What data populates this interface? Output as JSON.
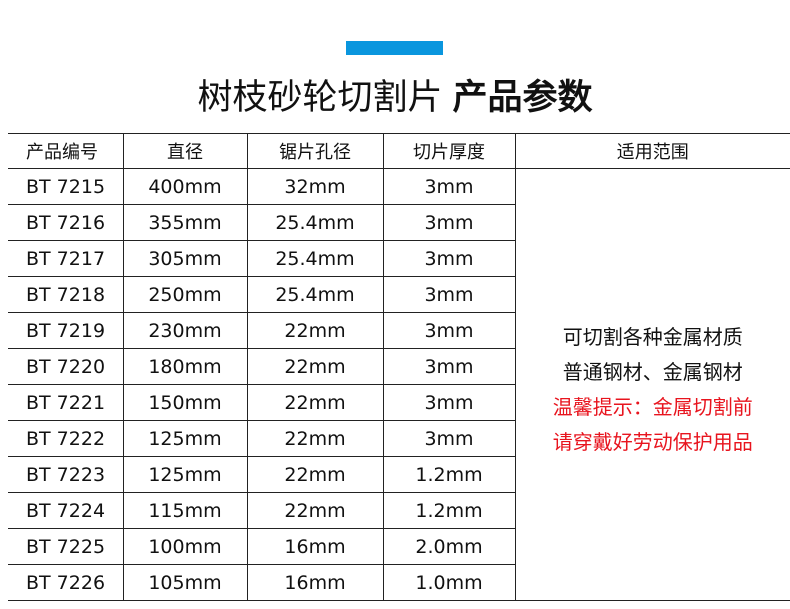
{
  "accent_color": "#0a96de",
  "warning_color": "#e8141e",
  "title": {
    "main": "树枝砂轮切割片",
    "bold": "产品参数"
  },
  "table": {
    "headers": [
      "产品编号",
      "直径",
      "锯片孔径",
      "切片厚度",
      "适用范围"
    ],
    "rows": [
      [
        "BT 7215",
        "400mm",
        "32mm",
        "3mm"
      ],
      [
        "BT 7216",
        "355mm",
        "25.4mm",
        "3mm"
      ],
      [
        "BT 7217",
        "305mm",
        "25.4mm",
        "3mm"
      ],
      [
        "BT 7218",
        "250mm",
        "25.4mm",
        "3mm"
      ],
      [
        "BT 7219",
        "230mm",
        "22mm",
        "3mm"
      ],
      [
        "BT 7220",
        "180mm",
        "22mm",
        "3mm"
      ],
      [
        "BT 7221",
        "150mm",
        "22mm",
        "3mm"
      ],
      [
        "BT 7222",
        "125mm",
        "22mm",
        "3mm"
      ],
      [
        "BT 7223",
        "125mm",
        "22mm",
        "1.2mm"
      ],
      [
        "BT 7224",
        "115mm",
        "22mm",
        "1.2mm"
      ],
      [
        "BT 7225",
        "100mm",
        "16mm",
        "2.0mm"
      ],
      [
        "BT 7226",
        "105mm",
        "16mm",
        "1.0mm"
      ]
    ],
    "scope": {
      "line1": "可切割各种金属材质",
      "line2": "普通钢材、金属钢材",
      "warning1": "温馨提示：金属切割前",
      "warning2": "请穿戴好劳动保护用品"
    }
  }
}
